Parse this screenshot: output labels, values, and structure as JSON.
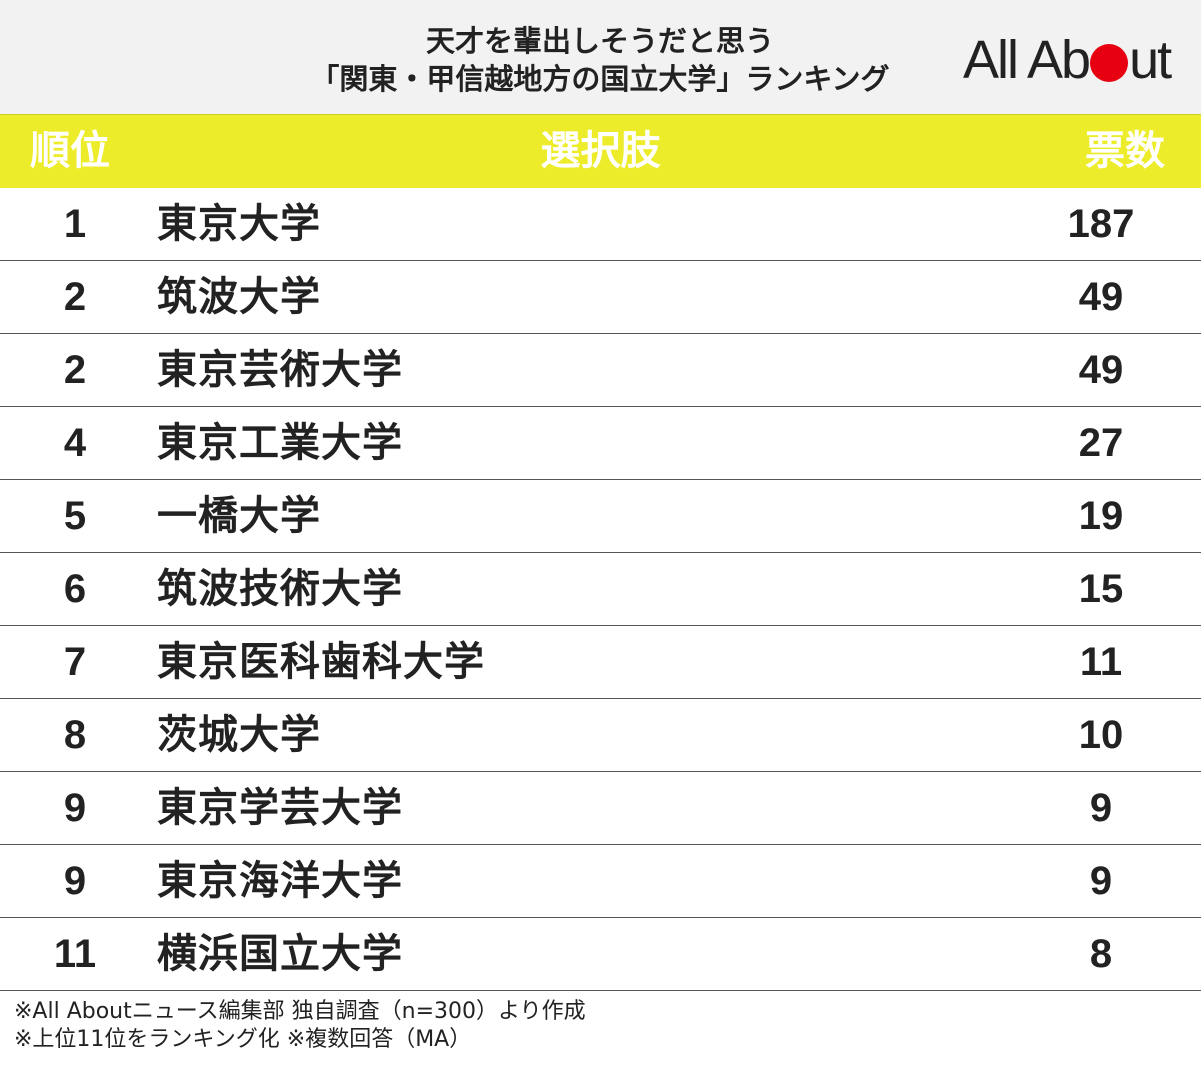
{
  "header": {
    "title_line1": "天才を輩出しそうだと思う",
    "title_line2": "「関東・甲信越地方の国立大学」ランキング",
    "logo_part1": "All Ab",
    "logo_part2": "ut",
    "logo_dot_color": "#e60012"
  },
  "table": {
    "columns": {
      "rank": "順位",
      "choice": "選択肢",
      "votes": "票数"
    },
    "header_color": "#ecec2a",
    "rows": [
      {
        "rank": "1",
        "name": "東京大学",
        "votes": "187"
      },
      {
        "rank": "2",
        "name": "筑波大学",
        "votes": "49"
      },
      {
        "rank": "2",
        "name": "東京芸術大学",
        "votes": "49"
      },
      {
        "rank": "4",
        "name": "東京工業大学",
        "votes": "27"
      },
      {
        "rank": "5",
        "name": "一橋大学",
        "votes": "19"
      },
      {
        "rank": "6",
        "name": "筑波技術大学",
        "votes": "15"
      },
      {
        "rank": "7",
        "name": "東京医科歯科大学",
        "votes": "11"
      },
      {
        "rank": "8",
        "name": "茨城大学",
        "votes": "10"
      },
      {
        "rank": "9",
        "name": "東京学芸大学",
        "votes": "9"
      },
      {
        "rank": "9",
        "name": "東京海洋大学",
        "votes": "9"
      },
      {
        "rank": "11",
        "name": "横浜国立大学",
        "votes": "8"
      }
    ]
  },
  "footnotes": {
    "line1": "※All Aboutニュース編集部 独自調査（n=300）より作成",
    "line2": "※上位11位をランキング化 ※複数回答（MA）"
  }
}
